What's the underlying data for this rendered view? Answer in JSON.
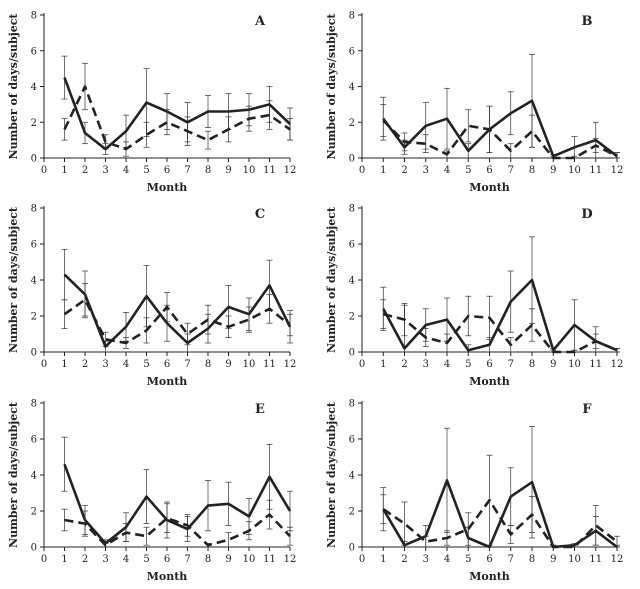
{
  "chart_data": [
    {
      "type": "line",
      "panel_label": "A",
      "xlabel": "Month",
      "ylabel": "Number of days/subject",
      "xlim": [
        0,
        12
      ],
      "ylim": [
        0,
        8
      ],
      "x_ticks": [
        0,
        1,
        2,
        3,
        4,
        5,
        6,
        7,
        8,
        9,
        10,
        11,
        12
      ],
      "y_ticks": [
        0,
        2,
        4,
        6,
        8
      ],
      "x": [
        1,
        2,
        3,
        4,
        5,
        6,
        7,
        8,
        9,
        10,
        11,
        12
      ],
      "series": [
        {
          "style": "solid",
          "values": [
            4.5,
            1.4,
            0.5,
            1.5,
            3.1,
            2.6,
            2.0,
            2.6,
            2.6,
            2.7,
            3.0,
            1.9
          ],
          "errors": [
            1.2,
            0.6,
            0.3,
            0.9,
            1.9,
            1.0,
            1.1,
            0.9,
            1.0,
            0.9,
            1.0,
            0.9
          ]
        },
        {
          "style": "dashed",
          "values": [
            1.6,
            4.0,
            0.9,
            0.5,
            1.3,
            2.0,
            1.5,
            1.0,
            1.6,
            2.2,
            2.4,
            1.6
          ],
          "errors": [
            0.6,
            1.3,
            0.4,
            0.4,
            0.7,
            0.7,
            0.8,
            0.5,
            0.7,
            0.7,
            0.8,
            0.6
          ]
        }
      ]
    },
    {
      "type": "line",
      "panel_label": "B",
      "xlabel": "Month",
      "ylabel": "Number of days/subject",
      "xlim": [
        0,
        12
      ],
      "ylim": [
        0,
        8
      ],
      "x_ticks": [
        0,
        1,
        2,
        3,
        4,
        5,
        6,
        7,
        8,
        9,
        10,
        11,
        12
      ],
      "y_ticks": [
        0,
        2,
        4,
        6,
        8
      ],
      "x": [
        1,
        2,
        3,
        4,
        5,
        6,
        7,
        8,
        9,
        10,
        11,
        12
      ],
      "series": [
        {
          "style": "solid",
          "values": [
            2.2,
            0.6,
            1.8,
            2.2,
            0.4,
            1.6,
            2.5,
            3.2,
            0.1,
            0.6,
            1.0,
            0.1
          ],
          "errors": [
            1.2,
            0.4,
            1.3,
            1.7,
            0.4,
            1.3,
            1.2,
            2.6,
            0.1,
            0.6,
            1.0,
            0.2
          ]
        },
        {
          "style": "dashed",
          "values": [
            2.1,
            0.9,
            0.8,
            0.2,
            1.8,
            1.6,
            0.4,
            1.5,
            0.0,
            0.0,
            0.7,
            0.1
          ],
          "errors": [
            0.9,
            0.5,
            0.5,
            0.2,
            0.9,
            1.3,
            0.4,
            0.9,
            0.1,
            0.1,
            0.4,
            0.2
          ]
        }
      ]
    },
    {
      "type": "line",
      "panel_label": "C",
      "xlabel": "Month",
      "ylabel": "Number of days/subject",
      "xlim": [
        0,
        12
      ],
      "ylim": [
        0,
        8
      ],
      "x_ticks": [
        0,
        1,
        2,
        3,
        4,
        5,
        6,
        7,
        8,
        9,
        10,
        11,
        12
      ],
      "y_ticks": [
        0,
        2,
        4,
        6,
        8
      ],
      "x": [
        1,
        2,
        3,
        4,
        5,
        6,
        7,
        8,
        9,
        10,
        11,
        12
      ],
      "series": [
        {
          "style": "solid",
          "values": [
            4.3,
            3.2,
            0.3,
            1.4,
            3.1,
            1.6,
            0.5,
            1.3,
            2.5,
            2.1,
            3.7,
            1.4
          ],
          "errors": [
            1.4,
            1.3,
            0.3,
            0.8,
            1.7,
            1.0,
            0.5,
            0.8,
            1.2,
            0.9,
            1.4,
            0.9
          ]
        },
        {
          "style": "dashed",
          "values": [
            2.1,
            2.9,
            0.7,
            0.5,
            1.2,
            2.5,
            1.0,
            1.8,
            1.4,
            1.8,
            2.4,
            1.5
          ],
          "errors": [
            0.8,
            0.9,
            0.4,
            0.3,
            0.7,
            0.8,
            0.6,
            0.8,
            0.6,
            0.7,
            0.8,
            0.6
          ]
        }
      ]
    },
    {
      "type": "line",
      "panel_label": "D",
      "xlabel": "Month",
      "ylabel": "Number of days/subject",
      "xlim": [
        0,
        12
      ],
      "ylim": [
        0,
        8
      ],
      "x_ticks": [
        0,
        1,
        2,
        3,
        4,
        5,
        6,
        7,
        8,
        9,
        10,
        11,
        12
      ],
      "y_ticks": [
        0,
        2,
        4,
        6,
        8
      ],
      "x": [
        1,
        2,
        3,
        4,
        5,
        6,
        7,
        8,
        9,
        10,
        11,
        12
      ],
      "series": [
        {
          "style": "solid",
          "values": [
            2.4,
            0.2,
            1.5,
            1.8,
            0.1,
            0.4,
            2.8,
            4.0,
            0.1,
            1.5,
            0.6,
            0.1
          ],
          "errors": [
            1.2,
            2.4,
            0.9,
            1.2,
            0.3,
            0.4,
            1.7,
            2.4,
            0.1,
            1.4,
            0.8,
            0.1
          ]
        },
        {
          "style": "dashed",
          "values": [
            2.1,
            1.8,
            0.8,
            0.5,
            2.0,
            1.9,
            0.4,
            1.5,
            0.0,
            0.0,
            0.6,
            0.1
          ],
          "errors": [
            0.8,
            0.9,
            0.5,
            0.5,
            1.1,
            1.2,
            0.4,
            0.9,
            0.1,
            0.1,
            0.4,
            0.1
          ]
        }
      ]
    },
    {
      "type": "line",
      "panel_label": "E",
      "xlabel": "Month",
      "ylabel": "Number of days/subject",
      "xlim": [
        0,
        12
      ],
      "ylim": [
        0,
        8
      ],
      "x_ticks": [
        0,
        1,
        2,
        3,
        4,
        5,
        6,
        7,
        8,
        9,
        10,
        11,
        12
      ],
      "y_ticks": [
        0,
        2,
        4,
        6,
        8
      ],
      "x": [
        1,
        2,
        3,
        4,
        5,
        6,
        7,
        8,
        9,
        10,
        11,
        12
      ],
      "series": [
        {
          "style": "solid",
          "values": [
            4.6,
            1.5,
            0.2,
            1.1,
            2.8,
            1.5,
            1.0,
            2.3,
            2.4,
            1.7,
            3.9,
            2.0
          ],
          "errors": [
            1.5,
            0.8,
            0.2,
            0.8,
            1.5,
            1.0,
            0.7,
            1.4,
            1.2,
            1.0,
            1.8,
            1.1
          ]
        },
        {
          "style": "dashed",
          "values": [
            1.5,
            1.3,
            0.1,
            0.8,
            0.6,
            1.6,
            1.2,
            0.1,
            0.4,
            0.9,
            1.8,
            0.6
          ],
          "errors": [
            0.6,
            0.7,
            0.1,
            0.5,
            0.5,
            0.8,
            0.6,
            0.1,
            0.4,
            0.5,
            0.8,
            0.5
          ]
        }
      ]
    },
    {
      "type": "line",
      "panel_label": "F",
      "xlabel": "Month",
      "ylabel": "Number of days/subject",
      "xlim": [
        0,
        12
      ],
      "ylim": [
        0,
        8
      ],
      "x_ticks": [
        0,
        1,
        2,
        3,
        4,
        5,
        6,
        7,
        8,
        9,
        10,
        11,
        12
      ],
      "y_ticks": [
        0,
        2,
        4,
        6,
        8
      ],
      "x": [
        1,
        2,
        3,
        4,
        5,
        6,
        7,
        8,
        9,
        10,
        11,
        12
      ],
      "series": [
        {
          "style": "solid",
          "values": [
            2.1,
            0.1,
            0.6,
            3.7,
            0.5,
            0.0,
            2.8,
            3.6,
            0.0,
            0.1,
            0.9,
            0.0
          ],
          "errors": [
            1.2,
            0.2,
            0.6,
            2.9,
            0.6,
            0.1,
            1.6,
            3.1,
            0.1,
            0.1,
            0.8,
            0.1
          ]
        },
        {
          "style": "dashed",
          "values": [
            2.1,
            1.3,
            0.3,
            0.5,
            1.0,
            2.6,
            0.7,
            1.8,
            0.0,
            0.0,
            1.2,
            0.3
          ],
          "errors": [
            0.8,
            1.2,
            0.3,
            0.4,
            0.9,
            2.5,
            0.5,
            1.0,
            0.1,
            0.1,
            1.1,
            0.3
          ]
        }
      ]
    }
  ]
}
